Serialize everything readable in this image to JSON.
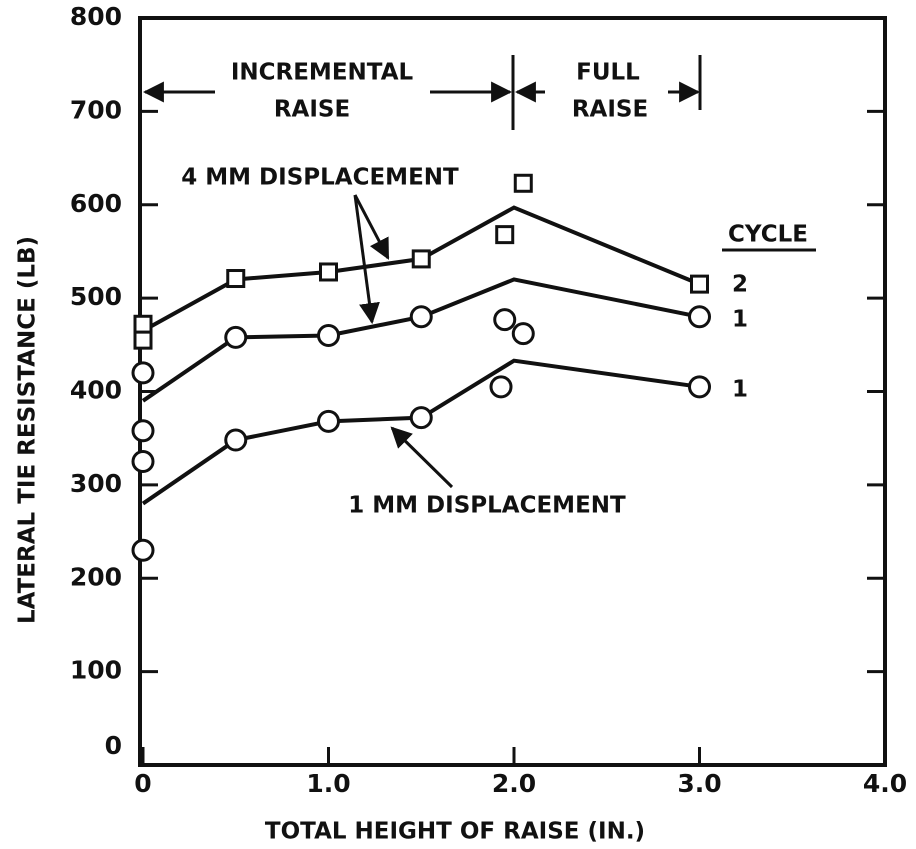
{
  "chart_data": {
    "type": "line",
    "xlabel": "TOTAL HEIGHT OF RAISE (IN.)",
    "ylabel": "LATERAL TIE RESISTANCE (LB)",
    "xlim": [
      0,
      4
    ],
    "ylim": [
      0,
      800
    ],
    "xticks": [
      0,
      {
        "value": 1,
        "label": "1.0"
      },
      {
        "value": 2,
        "label": "2.0"
      },
      {
        "value": 3,
        "label": "3.0"
      },
      {
        "value": 4,
        "label": "4.0"
      }
    ],
    "yticks": [
      0,
      100,
      200,
      300,
      400,
      500,
      600,
      700,
      800
    ],
    "color": "#111",
    "lines": [
      {
        "x": [
          0,
          0.5,
          1.0,
          1.5,
          2.0,
          3.0
        ],
        "values": [
          465,
          520,
          528,
          542,
          597,
          515
        ]
      },
      {
        "x": [
          0,
          0.5,
          1.0,
          1.5,
          2.0,
          3.0
        ],
        "values": [
          390,
          458,
          460,
          480,
          520,
          480
        ]
      },
      {
        "x": [
          0,
          0.5,
          1.0,
          1.5,
          2.0,
          3.0
        ],
        "values": [
          280,
          348,
          368,
          372,
          433,
          405
        ]
      }
    ],
    "series": [
      {
        "marker": "square",
        "x": [
          0,
          0,
          0.5,
          1.0,
          1.5,
          1.95,
          2.05,
          3.0
        ],
        "values": [
          472,
          455,
          521,
          528,
          542,
          568,
          623,
          515
        ]
      },
      {
        "marker": "circle",
        "x": [
          0,
          0.5,
          1.0,
          1.5,
          1.95,
          2.05,
          3.0
        ],
        "values": [
          420,
          458,
          460,
          480,
          477,
          462,
          480
        ]
      },
      {
        "marker": "circle",
        "x": [
          0,
          0,
          0,
          0.5,
          1.0,
          1.5,
          1.93,
          3.0
        ],
        "values": [
          358,
          325,
          230,
          348,
          368,
          372,
          405,
          405
        ]
      }
    ],
    "annotations": [
      "INCREMENTAL",
      "RAISE",
      "FULL",
      "RAISE",
      "4 MM DISPLACEMENT",
      "1 MM DISPLACEMENT",
      "CYCLE",
      "2",
      "1",
      "1"
    ]
  }
}
